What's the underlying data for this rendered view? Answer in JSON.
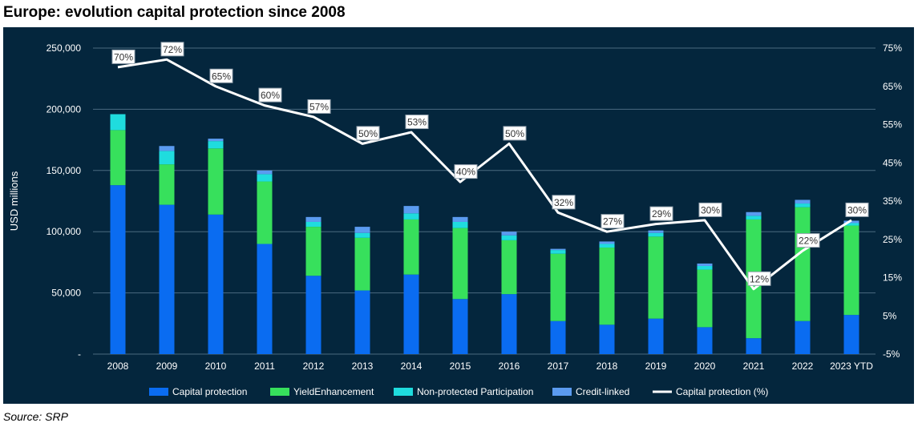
{
  "title": "Europe: evolution capital protection since 2008",
  "source": "Source: SRP",
  "colors": {
    "background": "#04263d",
    "capital_protection": "#0a6cf1",
    "yield_enhancement": "#37e05c",
    "non_protected_participation": "#1fdcde",
    "credit_linked": "#5b9bf0",
    "line": "#ffffff",
    "text": "#ffffff"
  },
  "chart_data": {
    "type": "bar",
    "stacked": true,
    "categories": [
      "2008",
      "2009",
      "2010",
      "2011",
      "2012",
      "2013",
      "2014",
      "2015",
      "2016",
      "2017",
      "2018",
      "2019",
      "2020",
      "2021",
      "2022",
      "2023 YTD"
    ],
    "ylabel": "USD millions",
    "ylim": [
      0,
      250000
    ],
    "yticks": [
      "-",
      "50,000",
      "100,000",
      "150,000",
      "200,000",
      "250,000"
    ],
    "y2lim": [
      -5,
      75
    ],
    "y2ticks": [
      "-5%",
      "5%",
      "15%",
      "25%",
      "35%",
      "45%",
      "55%",
      "65%",
      "75%"
    ],
    "grid": true,
    "legend_position": "bottom",
    "series": [
      {
        "name": "Capital protection",
        "color_key": "capital_protection",
        "values": [
          138000,
          122000,
          114000,
          90000,
          64000,
          52000,
          65000,
          45000,
          49000,
          27000,
          24000,
          29000,
          22000,
          13000,
          27000,
          32000
        ]
      },
      {
        "name": "YieldEnhancement",
        "color_key": "yield_enhancement",
        "values": [
          45000,
          33000,
          54000,
          51000,
          40000,
          43000,
          45000,
          58000,
          44000,
          55000,
          63000,
          67000,
          47000,
          97000,
          93000,
          73000
        ]
      },
      {
        "name": "Non-protected Participation",
        "color_key": "non_protected_participation",
        "values": [
          13000,
          11000,
          6000,
          6000,
          4000,
          4000,
          5000,
          5000,
          4000,
          3000,
          3000,
          3000,
          3000,
          3000,
          3000,
          2000
        ]
      },
      {
        "name": "Credit-linked",
        "color_key": "credit_linked",
        "values": [
          0,
          4000,
          2000,
          3000,
          4000,
          5000,
          6000,
          4000,
          3000,
          1000,
          2000,
          2000,
          2000,
          3000,
          3000,
          2000
        ]
      }
    ],
    "line_series": {
      "name": "Capital protection (%)",
      "axis": "right",
      "values": [
        70,
        72,
        65,
        60,
        57,
        50,
        53,
        40,
        50,
        32,
        27,
        29,
        30,
        12,
        22,
        30
      ],
      "labels": [
        "70%",
        "72%",
        "65%",
        "60%",
        "57%",
        "50%",
        "53%",
        "40%",
        "50%",
        "32%",
        "27%",
        "29%",
        "30%",
        "12%",
        "22%",
        "30%"
      ]
    }
  }
}
